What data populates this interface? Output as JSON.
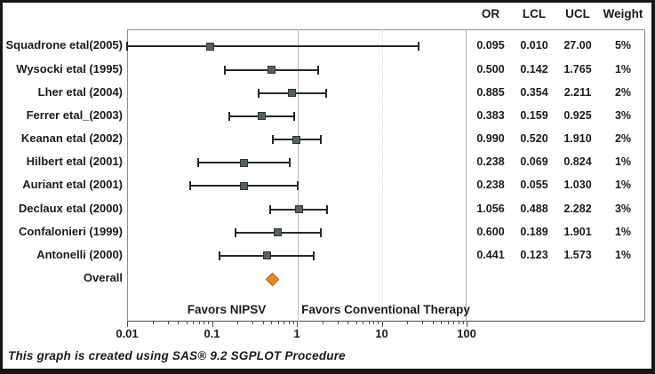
{
  "header": {
    "columns": [
      "OR",
      "LCL",
      "UCL",
      "Weight"
    ]
  },
  "chart_data": {
    "type": "scatter",
    "subtype": "forest-plot",
    "x_axis": {
      "scale": "log",
      "min": 0.01,
      "max": 100,
      "tick_values": [
        0.01,
        0.1,
        1,
        10,
        100
      ],
      "tick_labels": [
        "0.01",
        "0.1",
        "1",
        "10",
        "100"
      ],
      "reference_line_at": 1,
      "faint_gridline_at": 10
    },
    "studies": [
      {
        "label": "Squadrone etal(2005)",
        "or": 0.095,
        "lcl": 0.01,
        "ucl": 27.0,
        "or_text": "0.095",
        "lcl_text": "0.010",
        "ucl_text": "27.00",
        "weight": "5%"
      },
      {
        "label": "Wysocki etal (1995)",
        "or": 0.5,
        "lcl": 0.142,
        "ucl": 1.765,
        "or_text": "0.500",
        "lcl_text": "0.142",
        "ucl_text": "1.765",
        "weight": "1%"
      },
      {
        "label": "Lher etal (2004)",
        "or": 0.885,
        "lcl": 0.354,
        "ucl": 2.211,
        "or_text": "0.885",
        "lcl_text": "0.354",
        "ucl_text": "2.211",
        "weight": "2%"
      },
      {
        "label": "Ferrer etal_(2003)",
        "or": 0.383,
        "lcl": 0.159,
        "ucl": 0.925,
        "or_text": "0.383",
        "lcl_text": "0.159",
        "ucl_text": "0.925",
        "weight": "3%"
      },
      {
        "label": "Keanan etal (2002)",
        "or": 0.99,
        "lcl": 0.52,
        "ucl": 1.91,
        "or_text": "0.990",
        "lcl_text": "0.520",
        "ucl_text": "1.910",
        "weight": "2%"
      },
      {
        "label": "Hilbert etal (2001)",
        "or": 0.238,
        "lcl": 0.069,
        "ucl": 0.824,
        "or_text": "0.238",
        "lcl_text": "0.069",
        "ucl_text": "0.824",
        "weight": "1%"
      },
      {
        "label": "Auriant etal (2001)",
        "or": 0.238,
        "lcl": 0.055,
        "ucl": 1.03,
        "or_text": "0.238",
        "lcl_text": "0.055",
        "ucl_text": "1.030",
        "weight": "1%"
      },
      {
        "label": "Declaux etal (2000)",
        "or": 1.056,
        "lcl": 0.488,
        "ucl": 2.282,
        "or_text": "1.056",
        "lcl_text": "0.488",
        "ucl_text": "2.282",
        "weight": "3%"
      },
      {
        "label": "Confalonieri (1999)",
        "or": 0.6,
        "lcl": 0.189,
        "ucl": 1.901,
        "or_text": "0.600",
        "lcl_text": "0.189",
        "ucl_text": "1.901",
        "weight": "1%"
      },
      {
        "label": "Antonelli (2000)",
        "or": 0.441,
        "lcl": 0.123,
        "ucl": 1.573,
        "or_text": "0.441",
        "lcl_text": "0.123",
        "ucl_text": "1.573",
        "weight": "1%"
      }
    ],
    "overall": {
      "label": "Overall",
      "or_estimate": 0.52
    },
    "annotations": {
      "favors_left": "Favors NIPSV",
      "favors_right": "Favors Conventional Therapy"
    }
  },
  "footer": {
    "caption": "This graph is created using SAS® 9.2 SGPLOT Procedure"
  },
  "colors": {
    "marker_fill": "#55625a",
    "marker_border": "#2c362f",
    "ci_line": "#272727",
    "overall_fill": "#e8882a",
    "overall_border": "#b26312",
    "reference_line": "#b9b9b9",
    "divider": "#a9a9a9",
    "box_border": "#8f8f8f",
    "text": "#1b1b1b"
  }
}
